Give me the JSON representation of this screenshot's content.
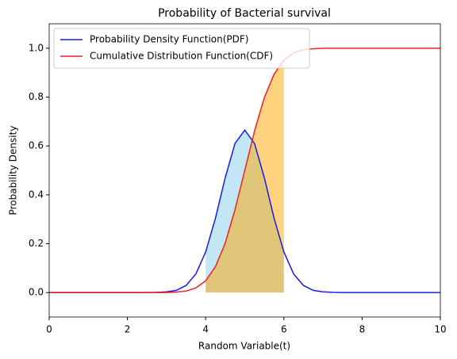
{
  "chart_data": {
    "type": "line",
    "title": "Probability of Bacterial survival",
    "x_label": "Random Variable(t)",
    "y_label": "Probability Density",
    "x": [
      0,
      0.25,
      0.5,
      0.75,
      1,
      1.25,
      1.5,
      1.75,
      2,
      2.25,
      2.5,
      2.75,
      3,
      3.25,
      3.5,
      3.75,
      4,
      4.25,
      4.5,
      4.75,
      5,
      5.25,
      5.5,
      5.75,
      6,
      6.25,
      6.5,
      6.75,
      7,
      7.25,
      7.5,
      7.75,
      8,
      8.25,
      8.5,
      8.75,
      9,
      9.25,
      9.5,
      9.75,
      10
    ],
    "series": [
      {
        "name": "Probability Density Function(PDF)",
        "color": "#1a1ae6",
        "fill_color": "#87ceeb",
        "values": [
          0,
          0,
          0,
          0,
          0,
          0,
          0,
          0,
          0,
          0,
          0,
          0.001,
          0.003,
          0.009,
          0.029,
          0.076,
          0.166,
          0.304,
          0.47,
          0.61,
          0.665,
          0.61,
          0.47,
          0.304,
          0.166,
          0.076,
          0.029,
          0.009,
          0.003,
          0.001,
          0,
          0,
          0,
          0,
          0,
          0,
          0,
          0,
          0,
          0,
          0
        ]
      },
      {
        "name": "Cumulative Distribution Function(CDF)",
        "color": "#f02020",
        "fill_color": "#ffa500",
        "values": [
          0,
          0,
          0,
          0,
          0,
          0,
          0,
          0,
          0,
          0,
          0,
          0,
          0,
          0.002,
          0.006,
          0.019,
          0.048,
          0.106,
          0.202,
          0.339,
          0.5,
          0.661,
          0.798,
          0.894,
          0.952,
          0.981,
          0.994,
          0.998,
          1,
          1,
          1,
          1,
          1,
          1,
          1,
          1,
          1,
          1,
          1,
          1,
          1
        ]
      }
    ],
    "fill_range": [
      4,
      6
    ],
    "xlim": [
      0,
      10
    ],
    "xticks": [
      0,
      2,
      4,
      6,
      8,
      10
    ],
    "ylim": [
      -0.1,
      1.1
    ],
    "yticks": [
      {
        "value": 0,
        "label": "0.0"
      },
      0.2,
      0.4,
      0.6,
      0.8,
      {
        "value": 1,
        "label": "1.0"
      }
    ],
    "legend": "upper left"
  }
}
